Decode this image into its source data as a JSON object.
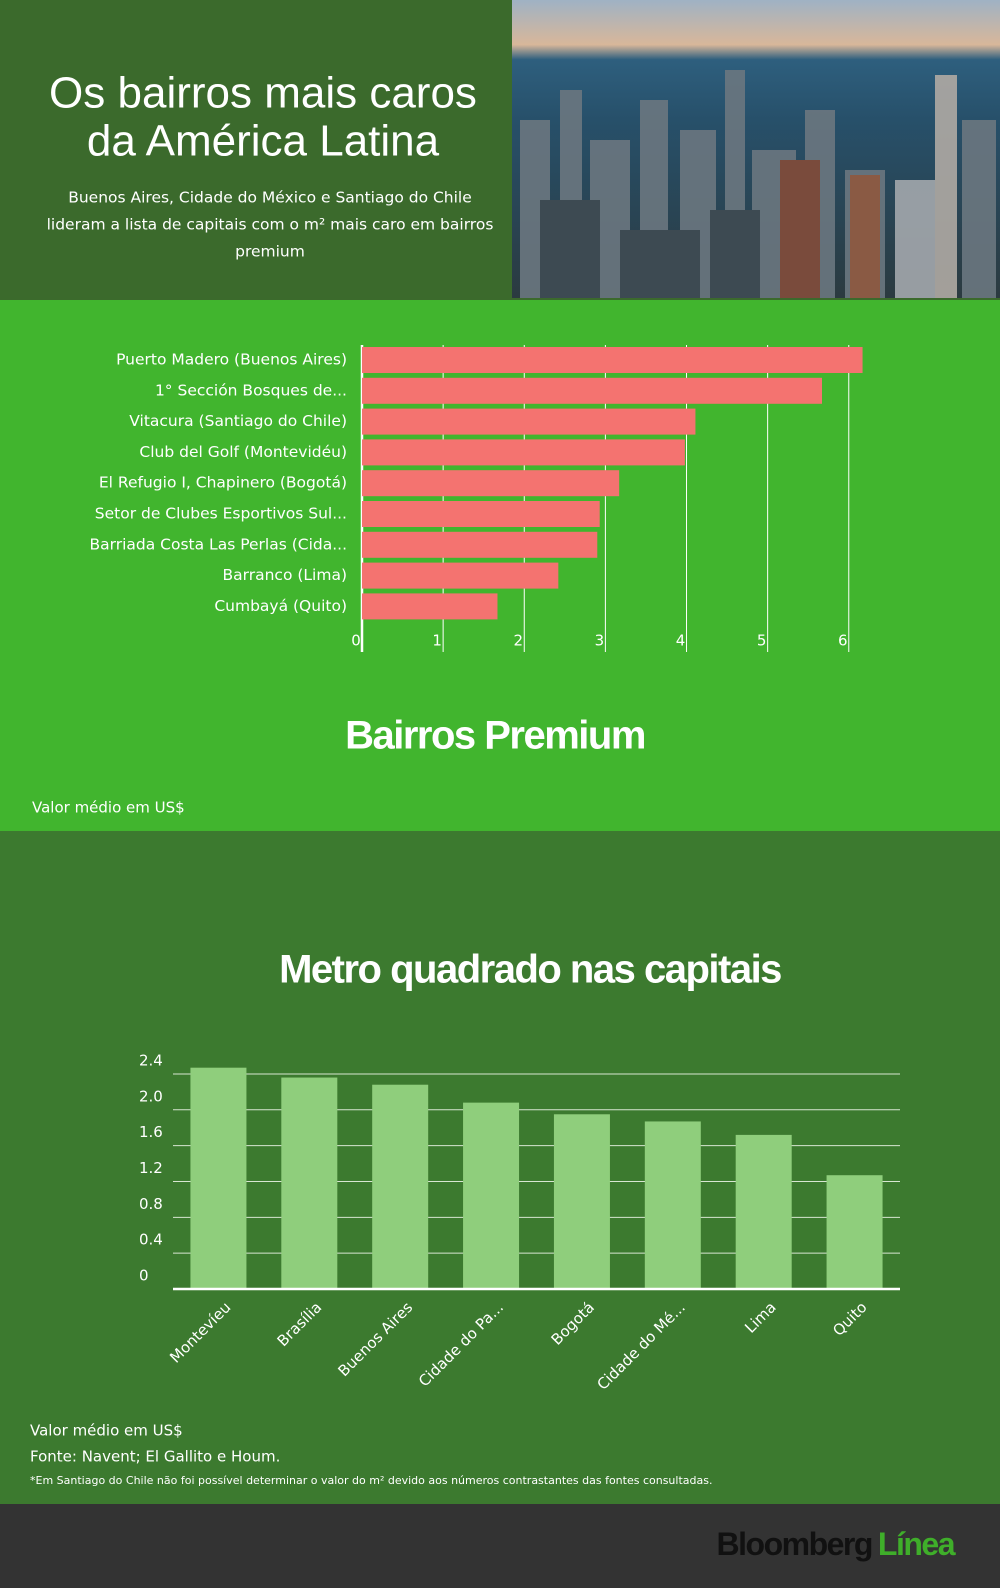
{
  "header": {
    "title_lines": [
      "Os bairros mais caros",
      "da América Latina"
    ],
    "subtitle_lines": [
      "Buenos Aires, Cidade do México e Santiago do Chile",
      "lideram a lista de capitais com o m² mais caro em bairros",
      "premium"
    ]
  },
  "chart_data": [
    {
      "type": "bar",
      "orientation": "horizontal",
      "title": "Bairros Premium",
      "note": "Valor médio em US$",
      "categories": [
        "Puerto Madero (Buenos Aires)",
        "1° Sección Bosques de...",
        "Vitacura (Santiago do Chile)",
        "Club del Golf (Montevidéu)",
        "El Refugio I, Chapinero (Bogotá)",
        "Setor de Clubes Esportivos Sul...",
        "Barriada Costa Las Perlas (Cida...",
        "Barranco (Lima)",
        "Cumbayá (Quito)"
      ],
      "values": [
        6.17,
        5.67,
        4.11,
        3.98,
        3.17,
        2.93,
        2.9,
        2.42,
        1.67
      ],
      "color": "#f47370",
      "xlim": [
        0,
        6.2
      ],
      "xticks": [
        0,
        1,
        2,
        3,
        4,
        5,
        6
      ],
      "grid": true
    },
    {
      "type": "bar",
      "orientation": "vertical",
      "title": "Metro quadrado nas capitais",
      "note": "Valor médio em US$",
      "categories": [
        "Montevíeu",
        "Brasília",
        "Buenos Aires",
        "Cidade do Pa...",
        "Bogotá",
        "Cidade do Mé...",
        "Lima",
        "Quito"
      ],
      "values": [
        2.47,
        2.36,
        2.28,
        2.08,
        1.95,
        1.87,
        1.72,
        1.27
      ],
      "color": "#8fce7c",
      "ylim": [
        0,
        2.5
      ],
      "yticks": [
        0,
        0.4,
        0.8,
        1.2,
        1.6,
        {
          "value": 2,
          "label": "2.0"
        },
        2.4
      ],
      "grid": true
    }
  ],
  "source": "Fonte: Navent; El Gallito e Houm.",
  "footnote": "*Em Santiago do Chile não foi possível determinar o valor do m² devido aos números contrastantes das fontes consultadas.",
  "brand": {
    "name": "Bloomberg",
    "suffix": "Línea"
  }
}
